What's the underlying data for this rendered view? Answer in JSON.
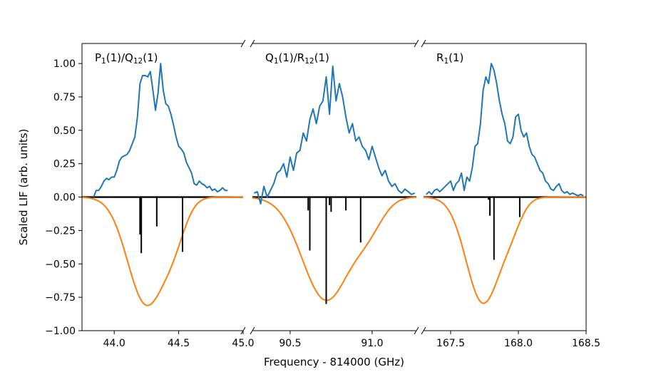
{
  "chart_data": {
    "type": "line",
    "ylabel": "Scaled LIF (arb. units)",
    "xlabel": "Frequency - 814000 (GHz)",
    "ylim": [
      -1.0,
      1.15
    ],
    "yticks": [
      "1.00",
      "0.75",
      "0.50",
      "0.25",
      "0.00",
      "−0.25",
      "−0.50",
      "−0.75",
      "−1.00"
    ],
    "ytick_values": [
      1.0,
      0.75,
      0.5,
      0.25,
      0.0,
      -0.25,
      -0.5,
      -0.75,
      -1.0
    ],
    "colors": {
      "measured": "#1f77b4",
      "simulated": "#ff7f0e",
      "sticks": "#000000",
      "zero_line": "#000000"
    },
    "panels": [
      {
        "label_main": "P",
        "label_sub1": "1",
        "label_mid": "(1)/Q",
        "label_sub2": "12",
        "label_end": "(1)",
        "xlim": [
          43.75,
          45.0
        ],
        "xticks": [
          "44.0",
          "44.5",
          "45.0"
        ],
        "xtick_values": [
          44.0,
          44.5,
          45.0
        ],
        "measured": {
          "x": [
            43.84,
            43.86,
            43.88,
            43.9,
            43.92,
            43.94,
            43.96,
            43.98,
            44.0,
            44.02,
            44.04,
            44.06,
            44.08,
            44.1,
            44.12,
            44.14,
            44.16,
            44.18,
            44.2,
            44.22,
            44.24,
            44.26,
            44.28,
            44.3,
            44.32,
            44.34,
            44.36,
            44.38,
            44.4,
            44.42,
            44.44,
            44.46,
            44.48,
            44.5,
            44.52,
            44.54,
            44.56,
            44.58,
            44.6,
            44.62,
            44.64,
            44.66,
            44.68,
            44.7,
            44.72,
            44.74,
            44.76,
            44.78,
            44.8,
            44.82,
            44.84,
            44.86,
            44.88
          ],
          "y": [
            0.0,
            0.05,
            0.05,
            0.08,
            0.12,
            0.14,
            0.13,
            0.15,
            0.15,
            0.2,
            0.27,
            0.3,
            0.31,
            0.32,
            0.35,
            0.4,
            0.45,
            0.6,
            0.85,
            0.91,
            0.91,
            0.9,
            0.94,
            0.8,
            0.65,
            0.78,
            1.0,
            0.8,
            0.7,
            0.68,
            0.62,
            0.54,
            0.45,
            0.38,
            0.36,
            0.33,
            0.26,
            0.22,
            0.18,
            0.1,
            0.09,
            0.12,
            0.1,
            0.09,
            0.07,
            0.08,
            0.05,
            0.06,
            0.04,
            0.05,
            0.07,
            0.05,
            0.05
          ]
        },
        "simulated": [
          {
            "mu": 44.25,
            "sigma": 0.145,
            "amp": 0.8
          },
          {
            "mu": 44.47,
            "sigma": 0.09,
            "amp": 0.2
          }
        ],
        "sticks": [
          {
            "x": 44.2,
            "h": -0.28
          },
          {
            "x": 44.21,
            "h": -0.42
          },
          {
            "x": 44.33,
            "h": -0.22
          },
          {
            "x": 44.53,
            "h": -0.41
          }
        ]
      },
      {
        "label_main": "Q",
        "label_sub1": "1",
        "label_mid": "(1)/R",
        "label_sub2": "12",
        "label_end": "(1)",
        "xlim": [
          90.27,
          91.27
        ],
        "xticks": [
          "90.5",
          "91.0"
        ],
        "xtick_values": [
          90.5,
          91.0
        ],
        "measured": {
          "x": [
            90.28,
            90.3,
            90.32,
            90.34,
            90.36,
            90.38,
            90.4,
            90.42,
            90.44,
            90.46,
            90.48,
            90.5,
            90.52,
            90.54,
            90.56,
            90.58,
            90.6,
            90.62,
            90.64,
            90.66,
            90.68,
            90.7,
            90.72,
            90.74,
            90.76,
            90.78,
            90.8,
            90.82,
            90.84,
            90.86,
            90.88,
            90.9,
            90.92,
            90.94,
            90.96,
            90.98,
            91.0,
            91.02,
            91.04,
            91.06,
            91.08,
            91.1,
            91.12,
            91.14,
            91.16,
            91.18,
            91.2,
            91.22,
            91.24,
            91.26
          ],
          "y": [
            0.03,
            0.04,
            -0.05,
            0.08,
            0.0,
            0.05,
            0.1,
            0.18,
            0.2,
            0.25,
            0.15,
            0.3,
            0.2,
            0.33,
            0.35,
            0.48,
            0.42,
            0.58,
            0.66,
            0.55,
            0.68,
            0.72,
            0.9,
            0.62,
            0.98,
            0.72,
            0.85,
            0.75,
            0.6,
            0.48,
            0.55,
            0.42,
            0.45,
            0.38,
            0.35,
            0.28,
            0.38,
            0.3,
            0.22,
            0.16,
            0.2,
            0.12,
            0.08,
            0.1,
            0.05,
            0.03,
            0.06,
            0.04,
            0.02,
            0.03
          ]
        },
        "simulated": [
          {
            "mu": 90.72,
            "sigma": 0.145,
            "amp": 0.77
          },
          {
            "mu": 90.98,
            "sigma": 0.09,
            "amp": 0.18
          }
        ],
        "sticks": [
          {
            "x": 90.61,
            "h": -0.1
          },
          {
            "x": 90.62,
            "h": -0.4
          },
          {
            "x": 90.72,
            "h": -0.8
          },
          {
            "x": 90.74,
            "h": -0.06
          },
          {
            "x": 90.75,
            "h": -0.11
          },
          {
            "x": 90.84,
            "h": -0.1
          },
          {
            "x": 90.93,
            "h": -0.34
          }
        ]
      },
      {
        "label_main": "R",
        "label_sub1": "1",
        "label_mid": "(1)",
        "label_sub2": "",
        "label_end": "",
        "xlim": [
          167.3,
          168.5
        ],
        "xticks": [
          "167.5",
          "168.0",
          "168.5"
        ],
        "xtick_values": [
          167.5,
          168.0,
          168.5
        ],
        "measured": {
          "x": [
            167.32,
            167.34,
            167.36,
            167.38,
            167.4,
            167.42,
            167.44,
            167.46,
            167.48,
            167.5,
            167.52,
            167.54,
            167.56,
            167.58,
            167.6,
            167.62,
            167.64,
            167.66,
            167.68,
            167.7,
            167.72,
            167.74,
            167.76,
            167.78,
            167.8,
            167.82,
            167.84,
            167.86,
            167.88,
            167.9,
            167.92,
            167.94,
            167.96,
            167.98,
            168.0,
            168.02,
            168.04,
            168.06,
            168.08,
            168.1,
            168.12,
            168.14,
            168.16,
            168.18,
            168.2,
            168.22,
            168.24,
            168.26,
            168.28,
            168.3,
            168.32,
            168.34,
            168.36,
            168.38,
            168.4,
            168.42,
            168.44,
            168.46,
            168.48
          ],
          "y": [
            0.02,
            0.04,
            0.02,
            0.05,
            0.06,
            0.04,
            0.06,
            0.08,
            0.1,
            0.12,
            0.05,
            0.1,
            0.12,
            0.18,
            0.05,
            0.15,
            0.12,
            0.22,
            0.38,
            0.4,
            0.55,
            0.8,
            0.9,
            0.85,
            1.0,
            0.95,
            0.85,
            0.72,
            0.62,
            0.55,
            0.42,
            0.4,
            0.45,
            0.6,
            0.62,
            0.5,
            0.45,
            0.48,
            0.38,
            0.32,
            0.3,
            0.25,
            0.2,
            0.18,
            0.12,
            0.1,
            0.06,
            0.05,
            0.08,
            0.1,
            0.05,
            0.03,
            0.04,
            0.02,
            0.03,
            0.02,
            0.01,
            0.02,
            0.01
          ]
        },
        "simulated": [
          {
            "mu": 167.74,
            "sigma": 0.125,
            "amp": 0.79
          },
          {
            "mu": 167.95,
            "sigma": 0.08,
            "amp": 0.15
          }
        ],
        "sticks": [
          {
            "x": 167.78,
            "h": -0.02
          },
          {
            "x": 167.79,
            "h": -0.14
          },
          {
            "x": 167.82,
            "h": -0.47
          },
          {
            "x": 168.01,
            "h": -0.15
          }
        ]
      }
    ]
  }
}
